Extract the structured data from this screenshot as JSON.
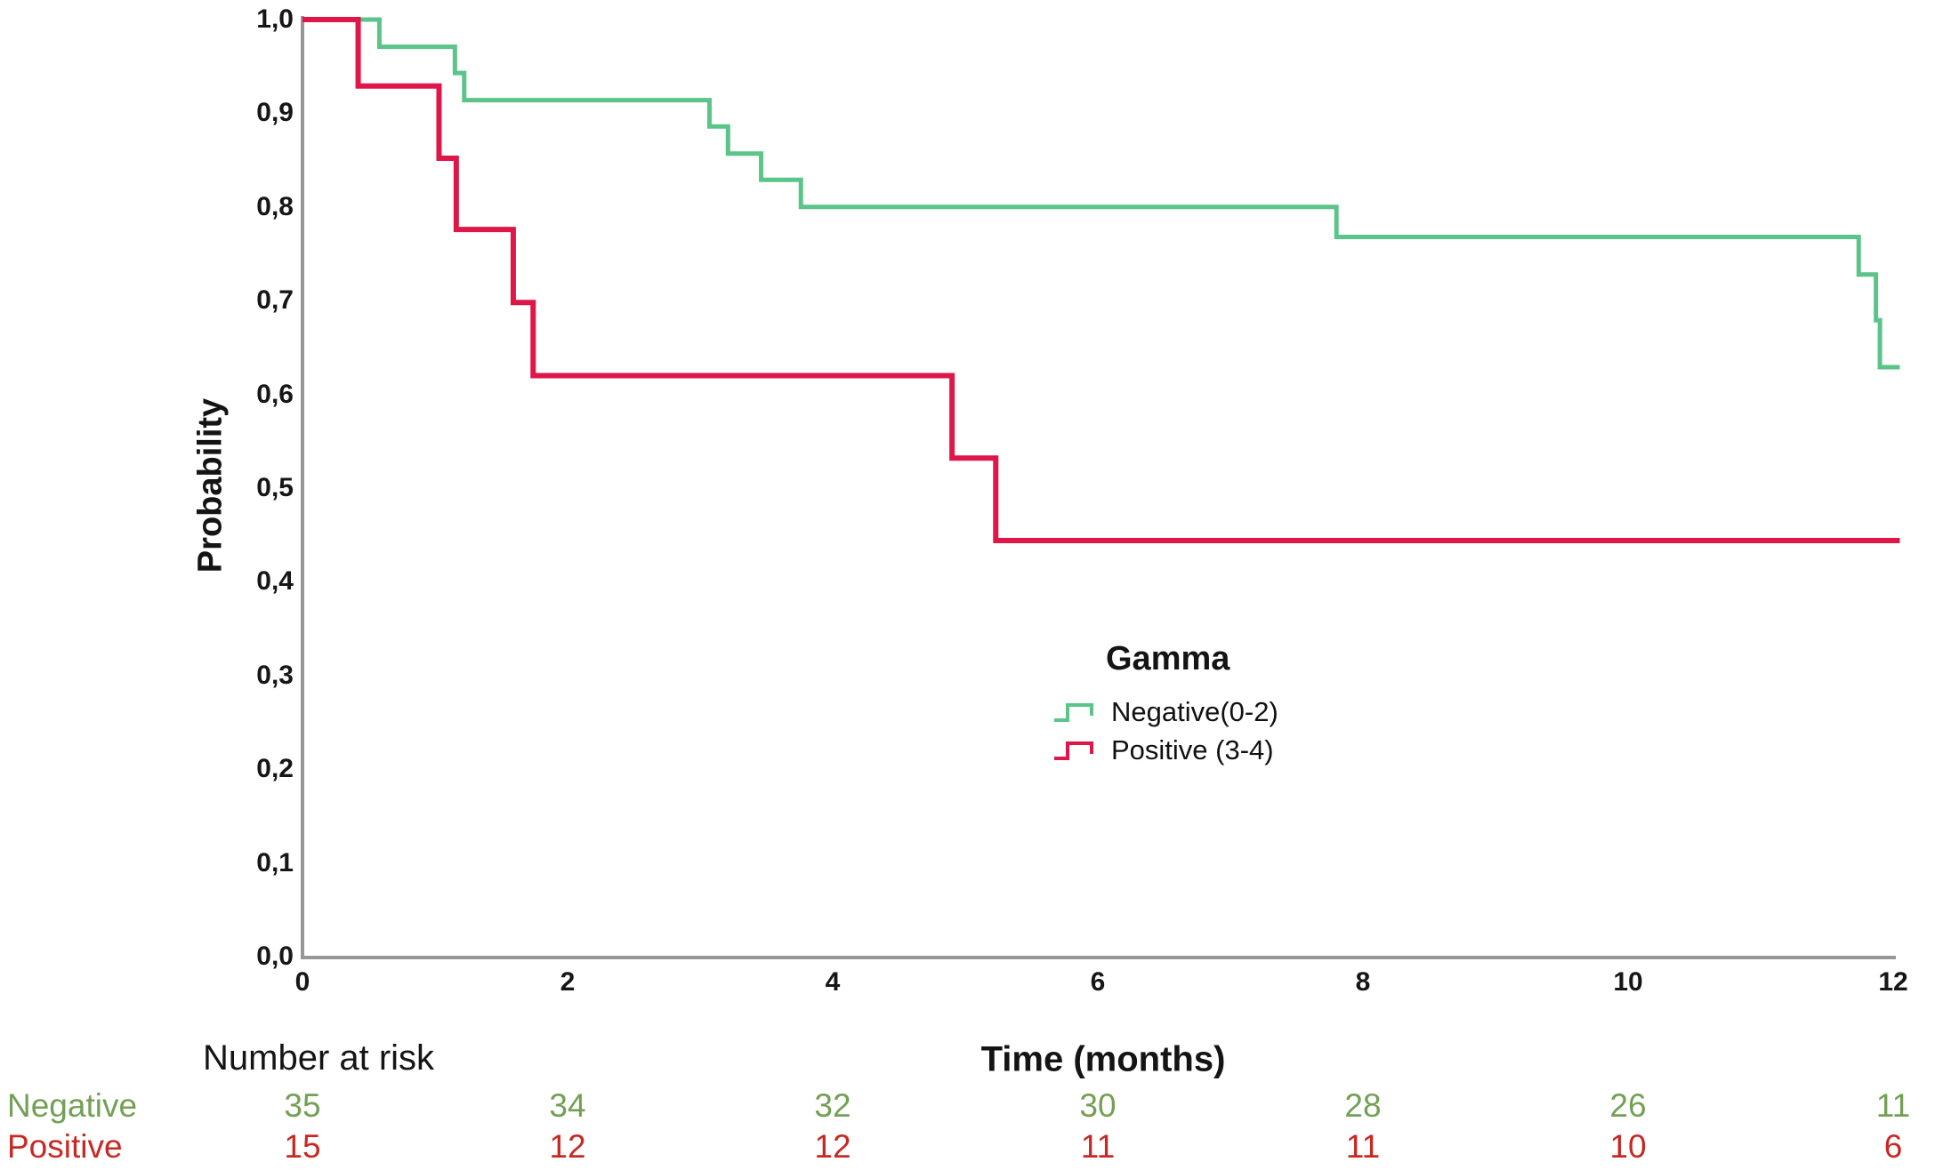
{
  "colors": {
    "curve_negative": "#5BC488",
    "curve_positive": "#DE1748",
    "text_negative": "#73A055",
    "text_positive": "#C82823",
    "axis": "#979797",
    "text": "#141414"
  },
  "chart_data": {
    "type": "line",
    "variant": "kaplan-meier-step-curve",
    "title": "",
    "xlabel": "Time (months)",
    "ylabel": "Probability",
    "xlim": [
      0,
      12
    ],
    "ylim": [
      0.0,
      1.0
    ],
    "grid": false,
    "x_end": 12.05,
    "x_ticks": [
      "0",
      "2",
      "4",
      "6",
      "8",
      "10",
      "12"
    ],
    "x_tick_values": [
      0,
      2,
      4,
      6,
      8,
      10,
      12
    ],
    "y_ticks": [
      "1,0",
      "0,9",
      "0,8",
      "0,7",
      "0,6",
      "0,5",
      "0,4",
      "0,3",
      "0,2",
      "0,1",
      "0,0"
    ],
    "y_tick_values": [
      1.0,
      0.9,
      0.8,
      0.7,
      0.6,
      0.5,
      0.4,
      0.3,
      0.2,
      0.1,
      0.0
    ],
    "legend": {
      "title": "Gamma",
      "position": "inside-right-center"
    },
    "series": [
      {
        "name": "Negative(0-2)",
        "color": "#5BC488",
        "steps": [
          [
            0,
            1.0
          ],
          [
            0.58,
            0.971
          ],
          [
            1.15,
            0.943
          ],
          [
            1.22,
            0.914
          ],
          [
            3.07,
            0.886
          ],
          [
            3.21,
            0.857
          ],
          [
            3.46,
            0.829
          ],
          [
            3.76,
            0.8
          ],
          [
            7.8,
            0.768
          ],
          [
            11.74,
            0.728
          ],
          [
            11.87,
            0.679
          ],
          [
            11.9,
            0.629
          ]
        ]
      },
      {
        "name": "Positive (3-4)",
        "color": "#DE1748",
        "steps": [
          [
            0,
            1.0
          ],
          [
            0.42,
            0.929
          ],
          [
            1.03,
            0.852
          ],
          [
            1.16,
            0.776
          ],
          [
            1.59,
            0.698
          ],
          [
            1.74,
            0.62
          ],
          [
            4.9,
            0.532
          ],
          [
            5.23,
            0.444
          ]
        ]
      }
    ]
  },
  "risk_table": {
    "title": "Number at risk",
    "time_points": [
      0,
      2,
      4,
      6,
      8,
      10,
      12
    ],
    "rows": [
      {
        "label": "Negative",
        "values": [
          35,
          34,
          32,
          30,
          28,
          26,
          11
        ]
      },
      {
        "label": "Positive",
        "values": [
          15,
          12,
          12,
          11,
          11,
          10,
          6
        ]
      }
    ]
  }
}
